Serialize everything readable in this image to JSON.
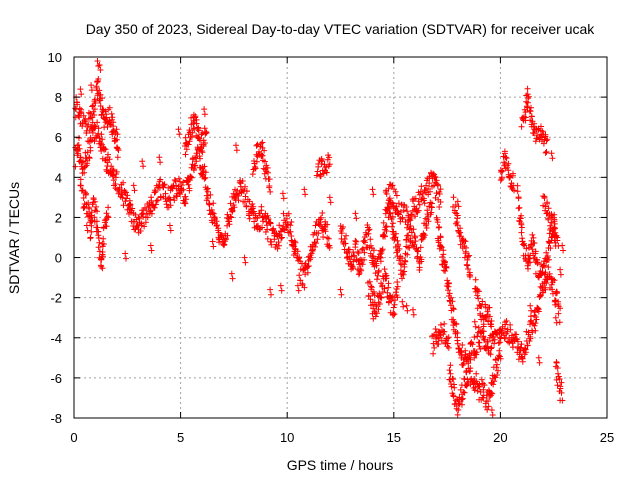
{
  "chart_data": {
    "type": "scatter",
    "title": "Day 350 of 2023, Sidereal Day-to-day VTEC variation (SDTVAR) for receiver ucak",
    "xlabel": "GPS time / hours",
    "ylabel": "SDTVAR / TECUs",
    "xlim": [
      0,
      25
    ],
    "ylim": [
      -8,
      10
    ],
    "xticks": [
      0,
      5,
      10,
      15,
      20,
      25
    ],
    "yticks": [
      -8,
      -6,
      -4,
      -2,
      0,
      2,
      4,
      6,
      8,
      10
    ],
    "xtick_labels": [
      "0",
      "5",
      "10",
      "15",
      "20",
      "25"
    ],
    "ytick_labels": [
      "-8",
      "-6",
      "-4",
      "-2",
      "0",
      "2",
      "4",
      "6",
      "8",
      "10"
    ],
    "grid": true,
    "marker": "+",
    "colors": {
      "series": "#ff0000",
      "grid": "#a0a0a0",
      "axis": "#000000"
    },
    "series": [
      {
        "name": "SDTVAR",
        "tracks": [
          [
            [
              0.0,
              4.8
            ],
            [
              0.2,
              5.6
            ],
            [
              0.4,
              4.4
            ],
            [
              0.6,
              5.0
            ],
            [
              0.8,
              5.8
            ],
            [
              1.0,
              6.4
            ],
            [
              1.2,
              6.0
            ],
            [
              1.4,
              5.2
            ],
            [
              1.6,
              4.6
            ],
            [
              1.8,
              4.2
            ],
            [
              2.0,
              3.8
            ],
            [
              2.2,
              3.4
            ],
            [
              2.4,
              3.0
            ],
            [
              2.6,
              2.4
            ],
            [
              2.8,
              2.0
            ],
            [
              3.0,
              1.6
            ],
            [
              3.2,
              1.9
            ],
            [
              3.4,
              2.2
            ],
            [
              3.6,
              2.6
            ],
            [
              3.8,
              3.0
            ],
            [
              4.0,
              3.4
            ],
            [
              4.2,
              3.2
            ],
            [
              4.4,
              3.0
            ],
            [
              4.6,
              3.2
            ],
            [
              4.8,
              3.6
            ],
            [
              5.0,
              3.4
            ],
            [
              5.2,
              3.0
            ],
            [
              5.4,
              3.8
            ],
            [
              5.6,
              4.6
            ],
            [
              5.8,
              5.0
            ],
            [
              6.0,
              4.6
            ],
            [
              6.2,
              3.6
            ],
            [
              6.4,
              2.6
            ],
            [
              6.6,
              2.0
            ],
            [
              6.8,
              1.4
            ],
            [
              7.0,
              0.6
            ],
            [
              7.2,
              1.6
            ],
            [
              7.4,
              2.6
            ],
            [
              7.6,
              3.2
            ],
            [
              7.8,
              3.4
            ],
            [
              8.0,
              3.2
            ],
            [
              8.2,
              2.6
            ],
            [
              8.4,
              2.0
            ],
            [
              8.6,
              1.6
            ],
            [
              8.8,
              2.0
            ],
            [
              9.0,
              1.8
            ],
            [
              9.2,
              1.2
            ],
            [
              9.4,
              0.8
            ],
            [
              9.6,
              1.0
            ],
            [
              9.8,
              1.6
            ],
            [
              10.0,
              2.0
            ],
            [
              10.2,
              1.2
            ],
            [
              10.4,
              0.2
            ],
            [
              10.6,
              -0.6
            ],
            [
              10.8,
              -1.0
            ],
            [
              11.0,
              -0.2
            ],
            [
              11.2,
              0.8
            ],
            [
              11.4,
              1.4
            ],
            [
              11.6,
              1.8
            ],
            [
              11.8,
              1.2
            ],
            [
              12.0,
              0.8
            ]
          ],
          [
            [
              0.0,
              7.6
            ],
            [
              0.3,
              7.0
            ],
            [
              0.6,
              6.6
            ],
            [
              0.9,
              7.2
            ],
            [
              1.1,
              8.6
            ],
            [
              1.3,
              7.4
            ],
            [
              1.5,
              6.8
            ],
            [
              1.7,
              7.0
            ],
            [
              1.9,
              6.2
            ],
            [
              2.1,
              5.4
            ]
          ],
          [
            [
              0.3,
              3.6
            ],
            [
              0.5,
              2.8
            ],
            [
              0.7,
              2.2
            ],
            [
              0.8,
              1.2
            ],
            [
              0.9,
              2.6
            ],
            [
              1.1,
              1.6
            ],
            [
              1.2,
              0.2
            ],
            [
              1.3,
              -0.4
            ],
            [
              1.4,
              1.2
            ],
            [
              1.6,
              2.4
            ]
          ],
          [
            [
              5.2,
              5.4
            ],
            [
              5.4,
              6.0
            ],
            [
              5.6,
              6.8
            ],
            [
              5.8,
              6.2
            ],
            [
              6.0,
              5.6
            ],
            [
              6.2,
              6.6
            ]
          ],
          [
            [
              8.4,
              4.6
            ],
            [
              8.6,
              5.2
            ],
            [
              8.8,
              5.4
            ],
            [
              9.0,
              4.4
            ],
            [
              9.2,
              3.6
            ]
          ],
          [
            [
              11.4,
              4.4
            ],
            [
              11.6,
              4.6
            ],
            [
              11.8,
              4.8
            ],
            [
              12.0,
              4.5
            ]
          ],
          [
            [
              12.5,
              1.6
            ],
            [
              12.8,
              0.4
            ],
            [
              13.0,
              -0.4
            ],
            [
              13.2,
              0.6
            ],
            [
              13.4,
              -0.8
            ],
            [
              13.6,
              0.4
            ],
            [
              13.8,
              1.2
            ],
            [
              14.0,
              0.2
            ],
            [
              14.2,
              -0.6
            ],
            [
              14.4,
              0.4
            ],
            [
              14.6,
              1.6
            ],
            [
              14.8,
              2.6
            ],
            [
              15.0,
              1.4
            ],
            [
              15.2,
              0.4
            ],
            [
              15.4,
              -0.6
            ],
            [
              15.6,
              0.4
            ],
            [
              15.8,
              1.2
            ],
            [
              16.0,
              0.6
            ],
            [
              16.2,
              -0.2
            ],
            [
              16.4,
              1.2
            ],
            [
              16.6,
              2.2
            ],
            [
              16.8,
              2.8
            ]
          ],
          [
            [
              13.8,
              -1.4
            ],
            [
              14.0,
              -2.0
            ],
            [
              14.2,
              -2.6
            ],
            [
              14.4,
              -1.6
            ],
            [
              14.6,
              -1.0
            ],
            [
              14.8,
              -2.2
            ],
            [
              15.0,
              -2.6
            ],
            [
              15.2,
              -1.6
            ]
          ],
          [
            [
              14.6,
              2.8
            ],
            [
              14.8,
              3.2
            ],
            [
              15.0,
              3.0
            ],
            [
              15.2,
              2.4
            ],
            [
              15.6,
              2.0
            ],
            [
              16.0,
              2.6
            ],
            [
              16.4,
              3.2
            ],
            [
              16.8,
              3.8
            ],
            [
              17.0,
              3.4
            ],
            [
              17.2,
              2.8
            ]
          ],
          [
            [
              17.0,
              1.8
            ],
            [
              17.2,
              0.6
            ],
            [
              17.4,
              -0.6
            ],
            [
              17.6,
              -1.8
            ],
            [
              17.8,
              -3.0
            ],
            [
              18.0,
              -4.0
            ],
            [
              18.2,
              -4.8
            ],
            [
              18.4,
              -5.2
            ],
            [
              18.6,
              -4.8
            ],
            [
              18.8,
              -4.4
            ],
            [
              19.0,
              -4.0
            ],
            [
              19.2,
              -4.2
            ],
            [
              19.4,
              -4.6
            ],
            [
              19.6,
              -4.2
            ],
            [
              19.8,
              -4.0
            ],
            [
              20.0,
              -3.8
            ],
            [
              20.2,
              -3.6
            ],
            [
              20.4,
              -3.8
            ],
            [
              20.6,
              -4.0
            ],
            [
              20.8,
              -4.4
            ],
            [
              21.0,
              -4.8
            ],
            [
              21.2,
              -4.2
            ],
            [
              21.4,
              -3.6
            ],
            [
              21.6,
              -3.0
            ],
            [
              21.8,
              -2.2
            ],
            [
              22.0,
              -1.4
            ],
            [
              22.2,
              -0.8
            ],
            [
              22.4,
              -1.2
            ],
            [
              22.6,
              -2.0
            ],
            [
              22.8,
              -2.8
            ]
          ],
          [
            [
              16.8,
              -4.4
            ],
            [
              17.0,
              -4.0
            ],
            [
              17.2,
              -3.6
            ],
            [
              17.4,
              -3.8
            ],
            [
              17.6,
              -4.2
            ]
          ],
          [
            [
              17.6,
              -5.6
            ],
            [
              17.8,
              -6.6
            ],
            [
              18.0,
              -7.4
            ],
            [
              18.2,
              -6.8
            ],
            [
              18.4,
              -6.0
            ],
            [
              18.6,
              -5.8
            ],
            [
              18.8,
              -6.2
            ],
            [
              19.0,
              -6.6
            ],
            [
              19.2,
              -6.6
            ],
            [
              19.4,
              -7.2
            ],
            [
              19.6,
              -6.4
            ],
            [
              19.8,
              -5.4
            ],
            [
              20.0,
              -4.8
            ]
          ],
          [
            [
              18.8,
              -1.4
            ],
            [
              19.0,
              -2.2
            ],
            [
              19.2,
              -3.0
            ],
            [
              19.4,
              -2.6
            ],
            [
              19.6,
              -3.2
            ]
          ],
          [
            [
              17.8,
              2.6
            ],
            [
              18.0,
              1.8
            ],
            [
              18.2,
              1.0
            ],
            [
              18.4,
              0.2
            ],
            [
              18.6,
              -0.8
            ]
          ],
          [
            [
              20.0,
              4.2
            ],
            [
              20.2,
              4.8
            ],
            [
              20.4,
              4.2
            ],
            [
              20.6,
              3.8
            ]
          ],
          [
            [
              20.8,
              3.2
            ],
            [
              20.9,
              2.2
            ],
            [
              21.0,
              1.2
            ],
            [
              21.1,
              0.4
            ],
            [
              21.3,
              -0.2
            ],
            [
              21.5,
              0.8
            ],
            [
              21.7,
              -0.4
            ],
            [
              21.9,
              -0.8
            ],
            [
              22.1,
              -0.4
            ],
            [
              22.3,
              0.6
            ],
            [
              22.5,
              1.6
            ],
            [
              22.7,
              0.4
            ]
          ],
          [
            [
              21.0,
              6.6
            ],
            [
              21.2,
              7.4
            ],
            [
              21.3,
              8.0
            ],
            [
              21.5,
              6.6
            ],
            [
              21.7,
              6.2
            ],
            [
              21.9,
              6.0
            ],
            [
              22.1,
              5.8
            ],
            [
              22.2,
              5.6
            ]
          ],
          [
            [
              22.0,
              2.6
            ],
            [
              22.2,
              2.2
            ],
            [
              22.4,
              1.8
            ],
            [
              22.6,
              1.2
            ]
          ],
          [
            [
              22.6,
              -5.4
            ],
            [
              22.7,
              -6.2
            ],
            [
              22.8,
              -6.8
            ],
            [
              22.9,
              -6.6
            ]
          ]
        ],
        "outliers": [
          [
            1.1,
            9.8
          ],
          [
            1.2,
            9.6
          ],
          [
            0.8,
            8.6
          ],
          [
            0.1,
            8.0
          ],
          [
            1.8,
            7.0
          ],
          [
            6.1,
            7.4
          ],
          [
            5.6,
            7.0
          ],
          [
            4.9,
            6.4
          ],
          [
            7.6,
            5.6
          ],
          [
            4.0,
            5.0
          ],
          [
            3.2,
            4.8
          ],
          [
            9.8,
            3.2
          ],
          [
            10.8,
            3.4
          ],
          [
            12.0,
            3.0
          ],
          [
            13.2,
            2.2
          ],
          [
            14.0,
            3.4
          ],
          [
            12.5,
            -1.6
          ],
          [
            14.0,
            -2.8
          ],
          [
            15.4,
            -2.2
          ],
          [
            15.6,
            -2.4
          ],
          [
            15.9,
            -2.6
          ],
          [
            16.9,
            4.0
          ],
          [
            18.0,
            2.8
          ],
          [
            18.8,
            -3.2
          ],
          [
            19.6,
            -7.6
          ],
          [
            20.6,
            3.6
          ],
          [
            21.4,
            -2.4
          ],
          [
            21.6,
            -3.4
          ],
          [
            21.8,
            -5.0
          ],
          [
            22.4,
            5.2
          ],
          [
            22.6,
            -3.0
          ],
          [
            22.8,
            -0.6
          ],
          [
            22.9,
            0.6
          ],
          [
            10.5,
            -1.4
          ],
          [
            9.7,
            -1.4
          ],
          [
            9.2,
            -1.6
          ],
          [
            8.0,
            0.0
          ],
          [
            7.4,
            -0.8
          ],
          [
            6.5,
            0.8
          ],
          [
            2.4,
            0.2
          ],
          [
            3.6,
            0.6
          ],
          [
            4.5,
            1.6
          ],
          [
            0.6,
            1.6
          ],
          [
            0.3,
            8.4
          ],
          [
            2.0,
            6.4
          ],
          [
            2.8,
            3.6
          ]
        ]
      }
    ]
  }
}
